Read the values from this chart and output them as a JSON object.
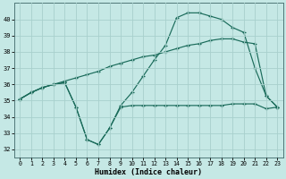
{
  "xlabel": "Humidex (Indice chaleur)",
  "background_color": "#c5e8e5",
  "grid_color": "#a8d0cc",
  "line_color": "#1a6b5a",
  "x_ticks": [
    0,
    1,
    2,
    3,
    4,
    5,
    6,
    7,
    8,
    9,
    10,
    11,
    12,
    13,
    14,
    15,
    16,
    17,
    18,
    19,
    20,
    21,
    22,
    23
  ],
  "y_ticks": [
    32,
    33,
    34,
    35,
    36,
    37,
    38,
    39,
    40
  ],
  "xlim": [
    -0.5,
    23.5
  ],
  "ylim": [
    31.5,
    41.0
  ],
  "line1_x": [
    0,
    1,
    2,
    3,
    4,
    5,
    6,
    7,
    8,
    9,
    10,
    11,
    12,
    13,
    14,
    15,
    16,
    17,
    18,
    19,
    20,
    21,
    22,
    23
  ],
  "line1_y": [
    35.1,
    35.5,
    35.8,
    36.0,
    36.1,
    34.6,
    32.6,
    32.3,
    33.3,
    34.6,
    34.7,
    34.7,
    34.7,
    34.7,
    34.7,
    34.7,
    34.7,
    34.7,
    34.7,
    34.8,
    34.8,
    34.8,
    34.5,
    34.6
  ],
  "line2_x": [
    0,
    1,
    2,
    3,
    4,
    5,
    6,
    7,
    8,
    9,
    10,
    11,
    12,
    13,
    14,
    15,
    16,
    17,
    18,
    19,
    20,
    21,
    22,
    23
  ],
  "line2_y": [
    35.1,
    35.5,
    35.8,
    36.0,
    36.1,
    34.6,
    32.6,
    32.3,
    33.3,
    34.7,
    35.5,
    36.5,
    37.5,
    38.4,
    40.1,
    40.4,
    40.4,
    40.2,
    40.0,
    39.5,
    39.2,
    37.0,
    35.3,
    34.6
  ],
  "line3_x": [
    0,
    1,
    2,
    3,
    4,
    5,
    6,
    7,
    8,
    9,
    10,
    11,
    12,
    13,
    14,
    15,
    16,
    17,
    18,
    19,
    20,
    21,
    22,
    23
  ],
  "line3_y": [
    35.1,
    35.5,
    35.8,
    36.0,
    36.2,
    36.4,
    36.6,
    36.8,
    37.1,
    37.3,
    37.5,
    37.7,
    37.8,
    38.0,
    38.2,
    38.4,
    38.5,
    38.7,
    38.8,
    38.8,
    38.6,
    38.5,
    35.3,
    34.6
  ]
}
